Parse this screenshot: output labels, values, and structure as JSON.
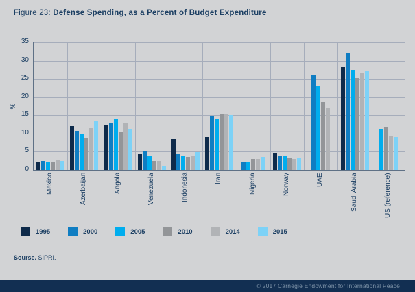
{
  "title": {
    "prefix": "Figure 23:",
    "text": "Defense Spending, as a Percent of Budget Expenditure"
  },
  "chart_data": {
    "type": "bar",
    "title": "Defense Spending, as a Percent of Budget Expenditure",
    "xlabel": "",
    "ylabel": "%",
    "ylim": [
      0,
      35
    ],
    "yticks": [
      0,
      5,
      10,
      15,
      20,
      25,
      30,
      35
    ],
    "grid": true,
    "legend_position": "bottom",
    "categories": [
      "Mexico",
      "Azerbaijan",
      "Angola",
      "Venezuela",
      "Indonesia",
      "Iran",
      "Nigeria",
      "Norway",
      "UAE",
      "Saudi Arabia",
      "US (reference)"
    ],
    "series": [
      {
        "name": "1995",
        "color": "#0e2a4a",
        "values": [
          2.3,
          12.0,
          12.3,
          4.6,
          8.5,
          9.0,
          null,
          4.7,
          null,
          28.3,
          null
        ]
      },
      {
        "name": "2000",
        "color": "#0f7dc2",
        "values": [
          2.5,
          10.8,
          12.8,
          5.3,
          4.3,
          14.9,
          2.3,
          4.0,
          26.2,
          32.0,
          null
        ]
      },
      {
        "name": "2005",
        "color": "#00adee",
        "values": [
          2.0,
          10.0,
          14.0,
          4.0,
          4.0,
          14.1,
          2.1,
          3.9,
          23.1,
          27.4,
          11.3
        ]
      },
      {
        "name": "2010",
        "color": "#939598",
        "values": [
          2.2,
          8.8,
          10.5,
          2.5,
          3.6,
          15.5,
          3.1,
          3.2,
          18.6,
          25.3,
          11.8
        ]
      },
      {
        "name": "2014",
        "color": "#b1b3b6",
        "values": [
          2.6,
          11.5,
          12.8,
          2.4,
          3.7,
          15.5,
          3.1,
          3.0,
          17.2,
          26.5,
          9.4
        ]
      },
      {
        "name": "2015",
        "color": "#7dd2f7",
        "values": [
          2.4,
          13.4,
          11.3,
          1.1,
          4.9,
          15.0,
          3.5,
          3.3,
          null,
          27.3,
          9.0
        ]
      }
    ]
  },
  "source": {
    "label": "Sourse.",
    "text": "SIPRI."
  },
  "footer": {
    "copyright": "© 2017 Carnegie Endowment for International Peace"
  },
  "colors": {
    "background": "#d2d3d5",
    "text_navy": "#1c3f63",
    "gridline": "#a6adbb",
    "axis": "#5f7186",
    "footer_bar": "#122f52",
    "footer_text": "#7e93a8"
  }
}
